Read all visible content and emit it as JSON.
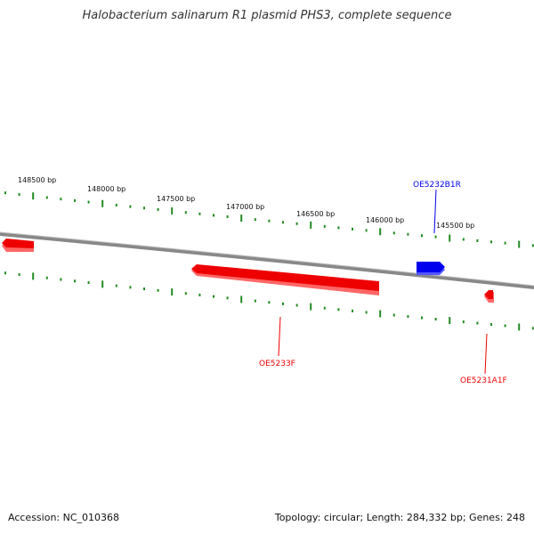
{
  "title": "Halobacterium salinarum R1 plasmid PHS3, complete sequence",
  "ticks": [
    {
      "label": "148500 bp"
    },
    {
      "label": "148000 bp"
    },
    {
      "label": "147500 bp"
    },
    {
      "label": "147000 bp"
    },
    {
      "label": "146500 bp"
    },
    {
      "label": "146000 bp"
    },
    {
      "label": "145500 bp"
    }
  ],
  "genes": [
    {
      "name": "OE5232B1R",
      "strand": "reverse",
      "color": "#0000ee"
    },
    {
      "name": "OE5233F",
      "strand": "forward",
      "color": "#ee0000"
    },
    {
      "name": "OE5231A1F",
      "strand": "forward",
      "color": "#ee0000"
    }
  ],
  "footer": {
    "accession": "Accession: NC_010368",
    "summary": "Topology: circular; Length: 284,332 bp; Genes: 248"
  },
  "colors": {
    "backbone": "#888888",
    "ticks": "#228b22",
    "forward": "#ee0000",
    "reverse": "#0000ee"
  }
}
